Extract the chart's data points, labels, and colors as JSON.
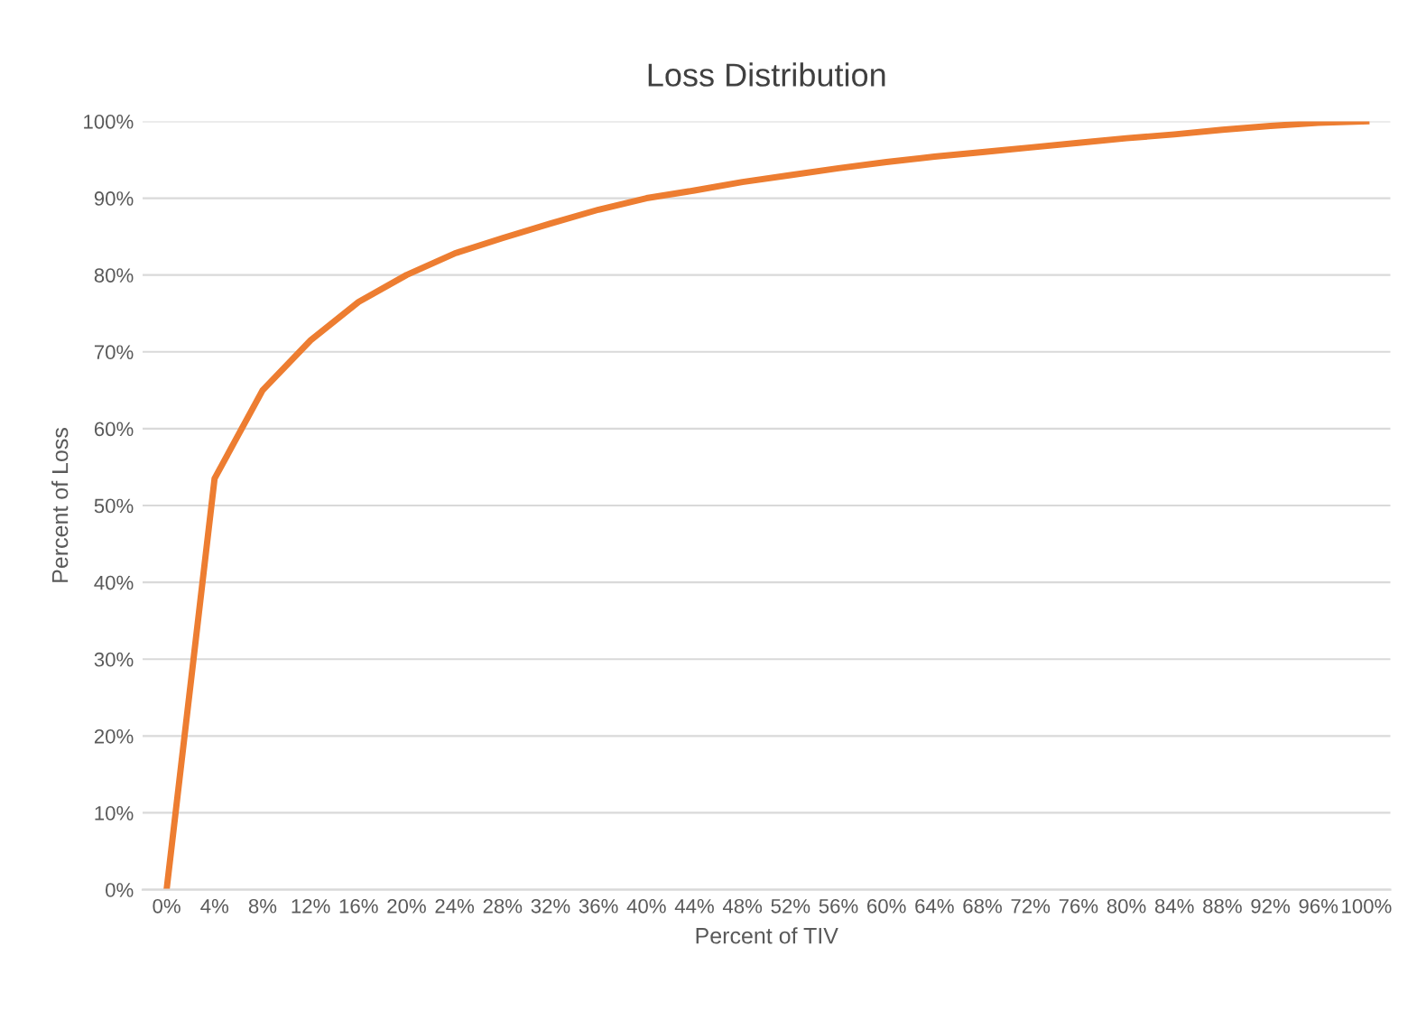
{
  "chart_data": {
    "type": "line",
    "title": "Loss Distribution",
    "xlabel": "Percent of TIV",
    "ylabel": "Percent of Loss",
    "categories": [
      "0%",
      "4%",
      "8%",
      "12%",
      "16%",
      "20%",
      "24%",
      "28%",
      "32%",
      "36%",
      "40%",
      "44%",
      "48%",
      "52%",
      "56%",
      "60%",
      "64%",
      "68%",
      "72%",
      "76%",
      "80%",
      "84%",
      "88%",
      "92%",
      "96%",
      "100%"
    ],
    "series": [
      {
        "color": "#ed7d31",
        "values": [
          0,
          53.5,
          65,
          71.5,
          76.5,
          80,
          82.8,
          84.8,
          86.7,
          88.5,
          90,
          91,
          92.1,
          93,
          93.9,
          94.7,
          95.4,
          96,
          96.6,
          97.2,
          97.8,
          98.3,
          98.9,
          99.4,
          99.8,
          100
        ]
      }
    ],
    "ylim": [
      0,
      100
    ],
    "yticks": [
      {
        "value": 0,
        "label": "0%"
      },
      {
        "value": 10,
        "label": "10%"
      },
      {
        "value": 20,
        "label": "20%"
      },
      {
        "value": 30,
        "label": "30%"
      },
      {
        "value": 40,
        "label": "40%"
      },
      {
        "value": 50,
        "label": "50%"
      },
      {
        "value": 60,
        "label": "60%"
      },
      {
        "value": 70,
        "label": "70%"
      },
      {
        "value": 80,
        "label": "80%"
      },
      {
        "value": 90,
        "label": "90%"
      },
      {
        "value": 100,
        "label": "100%"
      }
    ],
    "grid": "y",
    "marker": "none",
    "line_style": "solid"
  }
}
